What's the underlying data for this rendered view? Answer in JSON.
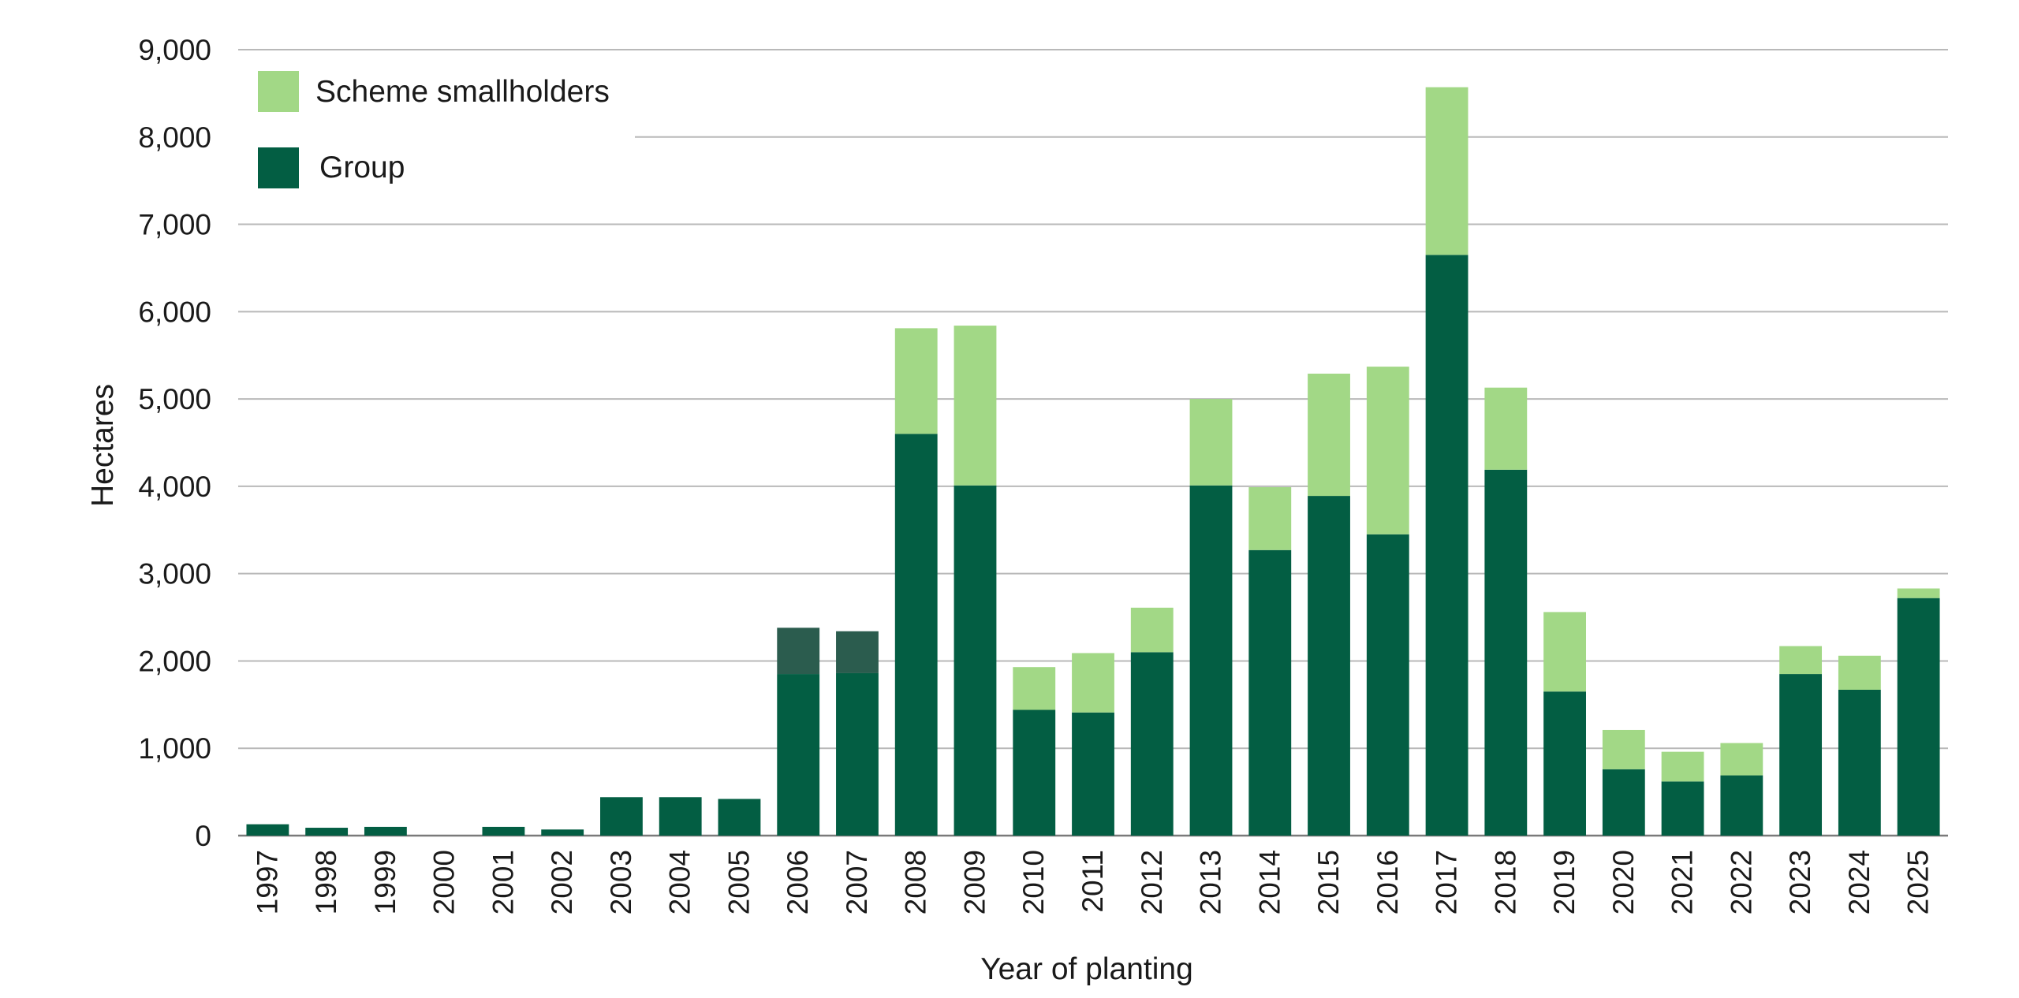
{
  "chart_data": {
    "type": "bar",
    "stacked": true,
    "xlabel": "Year of planting",
    "ylabel": "Hectares",
    "ylim": [
      0,
      9000
    ],
    "yticks": [
      0,
      1000,
      2000,
      3000,
      4000,
      5000,
      6000,
      7000,
      8000,
      9000
    ],
    "ytick_labels": [
      "0",
      "1,000",
      "2,000",
      "3,000",
      "4,000",
      "5,000",
      "6,000",
      "7,000",
      "8,000",
      "9,000"
    ],
    "grid": true,
    "legend_position": "top-left",
    "categories": [
      "1997",
      "1998",
      "1999",
      "2000",
      "2001",
      "2002",
      "2003",
      "2004",
      "2005",
      "2006",
      "2007",
      "2008",
      "2009",
      "2010",
      "2011",
      "2012",
      "2013",
      "2014",
      "2015",
      "2016",
      "2017",
      "2018",
      "2019",
      "2020",
      "2021",
      "2022",
      "2023",
      "2024",
      "2025"
    ],
    "series": [
      {
        "name": "Group",
        "color": "#035e43",
        "values": [
          130,
          90,
          100,
          0,
          100,
          70,
          440,
          440,
          420,
          1850,
          1860,
          4600,
          4010,
          1440,
          1410,
          2100,
          4010,
          3270,
          3890,
          3450,
          6650,
          4190,
          1650,
          760,
          620,
          690,
          1850,
          1670,
          2720
        ]
      },
      {
        "name": "Scheme smallholders",
        "color": "#a2d886",
        "values": [
          0,
          0,
          0,
          0,
          0,
          0,
          0,
          0,
          0,
          530,
          480,
          1210,
          1830,
          490,
          680,
          510,
          990,
          720,
          1400,
          1920,
          1920,
          940,
          910,
          450,
          340,
          370,
          320,
          390,
          110
        ]
      }
    ],
    "highlight_color": "#2b5c4e"
  }
}
